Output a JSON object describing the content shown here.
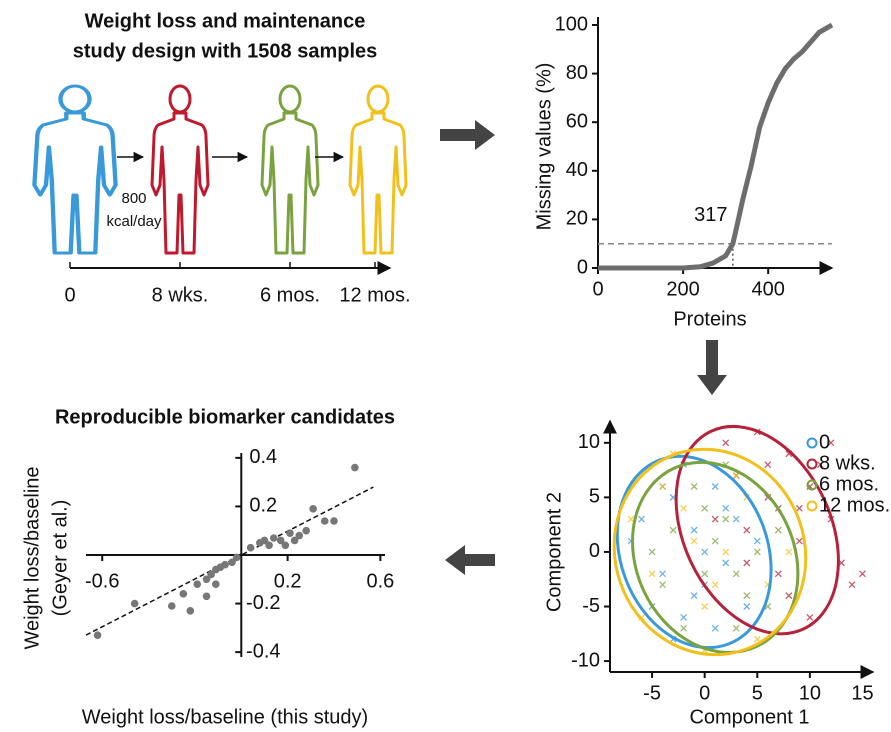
{
  "study_design": {
    "title_lines": [
      "Weight loss and maintenance",
      "study design with 1508 samples"
    ],
    "diet_label": [
      "800",
      "kcal/day"
    ],
    "timepoints": [
      "0",
      "8 wks.",
      "6 mos.",
      "12 mos."
    ]
  },
  "chart_data": [
    {
      "type": "line",
      "xlabel": "Proteins",
      "ylabel": "Missing values (%)",
      "x": [
        0,
        200,
        240,
        270,
        300,
        317,
        330,
        340,
        350,
        360,
        370,
        380,
        390,
        400,
        420,
        440,
        460,
        480,
        500,
        520,
        540,
        550
      ],
      "series": [
        {
          "color": "#6d6d6d",
          "values": [
            0,
            0,
            0.5,
            2,
            5,
            10,
            20,
            28,
            35,
            42,
            50,
            58,
            63,
            68,
            76,
            82,
            86,
            89,
            93,
            97,
            99,
            100
          ]
        }
      ],
      "xlim": [
        0,
        550
      ],
      "ylim": [
        0,
        100
      ],
      "xticks": [
        0,
        200,
        400
      ],
      "yticks": [
        0,
        20,
        40,
        60,
        80,
        100
      ],
      "annotations": [
        {
          "label": 317,
          "x": 317,
          "y": 10
        }
      ]
    },
    {
      "type": "scatter",
      "title": "Reproducible biomarker candidates",
      "xlabel": "Weight loss/baseline (this study)",
      "ylabel": [
        "Weight loss/baseline",
        "(Geyer et al.)"
      ],
      "series": [
        {
          "color": "#777777",
          "x": [
            0.49,
            -0.62,
            -0.46,
            -0.3,
            -0.25,
            -0.19,
            -0.15,
            -0.13,
            -0.11,
            -0.09,
            -0.07,
            -0.04,
            -0.02,
            0.04,
            0.08,
            0.1,
            0.12,
            0.14,
            0.17,
            0.19,
            0.21,
            0.23,
            0.25,
            0.28,
            0.31,
            0.36,
            0.4,
            -0.22,
            -0.11,
            -0.15
          ],
          "values": [
            0.36,
            -0.33,
            -0.2,
            -0.21,
            -0.16,
            -0.12,
            -0.1,
            -0.08,
            -0.06,
            -0.05,
            -0.04,
            -0.03,
            -0.01,
            0.03,
            0.05,
            0.06,
            0.04,
            0.07,
            0.06,
            0.04,
            0.09,
            0.06,
            0.08,
            0.1,
            0.19,
            0.14,
            0.14,
            -0.23,
            -0.12,
            -0.17
          ]
        }
      ],
      "fit_line": {
        "x": [
          -0.67,
          0.57
        ],
        "y": [
          -0.33,
          0.28
        ]
      },
      "xlim": [
        -0.67,
        0.62
      ],
      "ylim": [
        -0.42,
        0.42
      ],
      "xticks": [
        -0.6,
        0.2,
        0.6
      ],
      "yticks": [
        0.4,
        0.2,
        -0.2,
        -0.4
      ]
    },
    {
      "type": "scatter",
      "xlabel": "Component 1",
      "ylabel": "Component 2",
      "legend": "top-right",
      "xlim": [
        -9,
        16
      ],
      "ylim": [
        -11,
        12
      ],
      "xticks": [
        -5,
        0,
        5,
        10,
        15
      ],
      "yticks": [
        -10,
        -5,
        0,
        5,
        10
      ],
      "series": [
        {
          "name": "0",
          "color": "#3a9ad9",
          "x": [
            -6,
            -4,
            -3,
            -2,
            -1,
            0,
            1,
            2,
            -5,
            -7,
            3,
            -2,
            4,
            0,
            -3,
            1,
            5,
            -4,
            2,
            -1
          ],
          "values": [
            3,
            -2,
            5,
            -6,
            2,
            -3,
            6,
            -1,
            -5,
            1,
            3,
            8,
            -5,
            0,
            -8,
            -7,
            1,
            6,
            4,
            -4
          ],
          "ellipse": {
            "cx": -1,
            "cy": 0,
            "rx": 7,
            "ry": 9,
            "angle": -20
          }
        },
        {
          "name": "8 wks.",
          "color": "#b5223a",
          "x": [
            2,
            5,
            8,
            10,
            12,
            13,
            14,
            6,
            4,
            7,
            9,
            11,
            3,
            8,
            15,
            10,
            6,
            4,
            12,
            9,
            1,
            7
          ],
          "values": [
            10,
            11,
            9,
            6,
            3,
            -1,
            -3,
            5,
            2,
            -2,
            1,
            8,
            7,
            -4,
            -2,
            -6,
            8,
            -1,
            10,
            4,
            3,
            4
          ],
          "ellipse": {
            "cx": 5,
            "cy": 2,
            "rx": 7,
            "ry": 10,
            "angle": -25
          }
        },
        {
          "name": "6 mos.",
          "color": "#7aa33f",
          "x": [
            -3,
            0,
            2,
            4,
            -1,
            3,
            5,
            -4,
            1,
            6,
            -2,
            2,
            7,
            0,
            -5,
            3
          ],
          "values": [
            2,
            -2,
            3,
            -4,
            6,
            -7,
            0,
            -3,
            1,
            -5,
            -7,
            8,
            2,
            4,
            0,
            -2
          ],
          "ellipse": {
            "cx": 1,
            "cy": -0.5,
            "rx": 7.5,
            "ry": 9,
            "angle": -25
          }
        },
        {
          "name": "12 mos.",
          "color": "#f2bf1b",
          "x": [
            -7,
            -5,
            -2,
            0,
            2,
            -3,
            4,
            1,
            6,
            -1,
            -6,
            3,
            5,
            -4,
            8,
            0
          ],
          "values": [
            3,
            -2,
            4,
            -5,
            0,
            9,
            5,
            -3,
            -3,
            1,
            -6,
            7,
            -8,
            6,
            0,
            -9
          ],
          "ellipse": {
            "cx": 0.5,
            "cy": 0,
            "rx": 9,
            "ry": 9.5,
            "angle": -20
          }
        }
      ]
    }
  ]
}
